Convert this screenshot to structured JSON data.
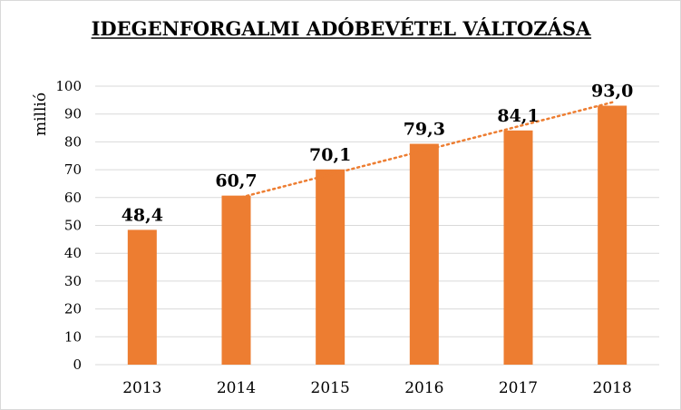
{
  "chart_data": {
    "type": "bar",
    "title": "IDEGENFORGALMI ADÓBEVÉTEL VÁLTOZÁSA",
    "ylabel": "millió",
    "xlabel": "",
    "categories": [
      "2013",
      "2014",
      "2015",
      "2016",
      "2017",
      "2018"
    ],
    "values": [
      48.4,
      60.7,
      70.1,
      79.3,
      84.1,
      93.0
    ],
    "data_labels": [
      "48,4",
      "60,7",
      "70,1",
      "79,3",
      "84,1",
      "93,0"
    ],
    "ylim": [
      0,
      100
    ],
    "yticks": [
      0,
      10,
      20,
      30,
      40,
      50,
      60,
      70,
      80,
      90,
      100
    ],
    "grid": true,
    "trendline": {
      "type": "linear",
      "style": "dotted",
      "from_category": "2014",
      "to_category": "2018"
    },
    "colors": {
      "bar": "#ED7D31",
      "trendline": "#ED7D31",
      "grid": "#d9d9d9"
    }
  }
}
